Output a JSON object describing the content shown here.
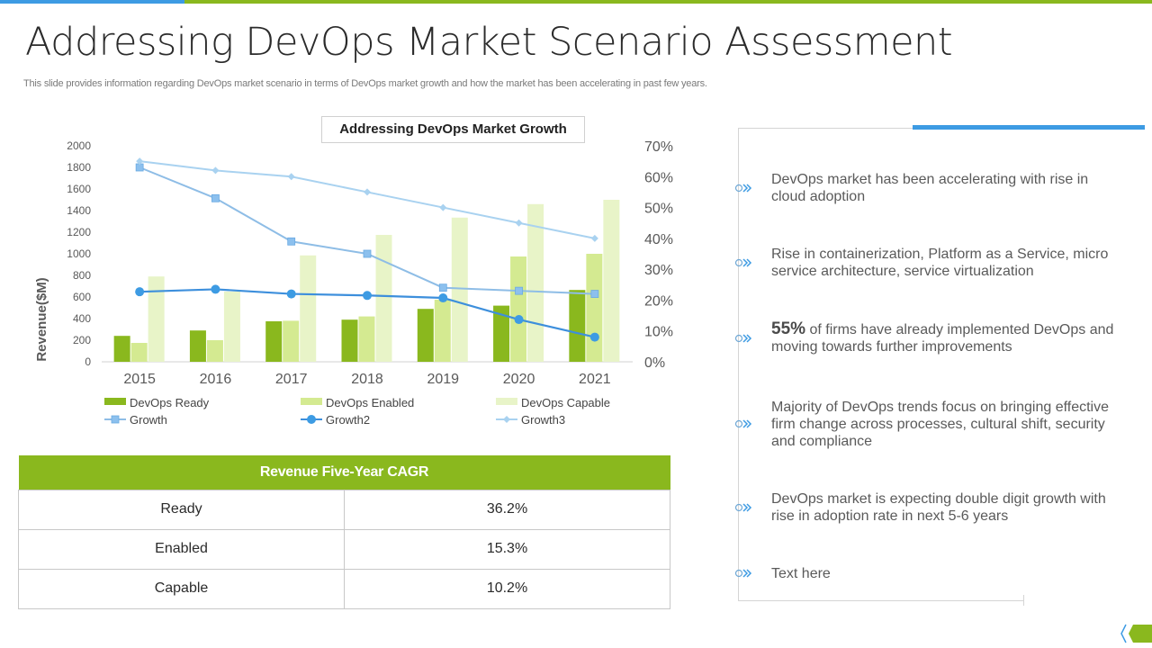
{
  "header": {
    "title": "Addressing DevOps Market Scenario Assessment",
    "subtitle": "This slide provides information regarding DevOps market scenario in terms of DevOps market growth and how the market has been accelerating in past few years."
  },
  "colors": {
    "green": "#8ab81e",
    "light_green": "#d4ea91",
    "pale_green": "#e8f4c8",
    "blue": "#3d9be3",
    "growth": "#8ebde6",
    "growth2": "#3d8fdc",
    "growth3": "#a9d2f0"
  },
  "chart_data": {
    "type": "bar",
    "title": "Addressing DevOps Market Growth",
    "xlabel": "",
    "ylabel": "Revenue($M)",
    "ylim": [
      0,
      2000
    ],
    "y_ticks": [
      "0",
      "200",
      "400",
      "600",
      "800",
      "1000",
      "1200",
      "1400",
      "1600",
      "1800",
      "2000"
    ],
    "y2lim": [
      0,
      70
    ],
    "y2_ticks": [
      "0%",
      "10%",
      "20%",
      "30%",
      "40%",
      "50%",
      "60%",
      "70%"
    ],
    "grid": false,
    "legend_position": "bottom",
    "categories": [
      "2015",
      "2016",
      "2017",
      "2018",
      "2019",
      "2020",
      "2021"
    ],
    "series": [
      {
        "name": "DevOps Ready",
        "kind": "bar",
        "axis": "left",
        "values": [
          240,
          290,
          375,
          390,
          490,
          520,
          665
        ]
      },
      {
        "name": "DevOps Enabled",
        "kind": "bar",
        "axis": "left",
        "values": [
          175,
          200,
          380,
          420,
          575,
          975,
          1000
        ]
      },
      {
        "name": "DevOps Capable",
        "kind": "bar",
        "axis": "left",
        "values": [
          790,
          650,
          985,
          1175,
          1335,
          1460,
          1500
        ]
      },
      {
        "name": "Growth",
        "kind": "line",
        "marker": "square",
        "axis": "right",
        "values": [
          63,
          53,
          39,
          35,
          24,
          23,
          22
        ]
      },
      {
        "name": "Growth2",
        "kind": "line",
        "marker": "circle",
        "axis": "right",
        "values": [
          22.7,
          23.5,
          22,
          21.5,
          20.7,
          13.7,
          8
        ]
      },
      {
        "name": "Growth3",
        "kind": "line",
        "marker": "diamond",
        "axis": "right",
        "values": [
          65,
          62,
          60,
          55,
          50,
          45,
          40
        ]
      }
    ]
  },
  "cagr_table": {
    "header": "Revenue Five-Year CAGR",
    "rows": [
      {
        "label": "Ready",
        "value": "36.2%"
      },
      {
        "label": "Enabled",
        "value": "15.3%"
      },
      {
        "label": "Capable",
        "value": "10.2%"
      }
    ]
  },
  "bullets": [
    {
      "icon": "circle-double-chevron-icon",
      "highlight": "",
      "text": "DevOps market has been accelerating with rise in cloud adoption"
    },
    {
      "icon": "circle-double-chevron-icon",
      "highlight": "",
      "text": "Rise in containerization,  Platform as a Service, micro service architecture,  service virtualization"
    },
    {
      "icon": "circle-double-chevron-icon",
      "highlight": "55%",
      "text": " of firms have already implemented DevOps and moving towards further  improvements"
    },
    {
      "icon": "circle-double-chevron-icon",
      "highlight": "",
      "text": "Majority of DevOps trends focus on bringing effective firm change across processes, cultural  shift, security and compliance"
    },
    {
      "icon": "circle-double-chevron-icon",
      "highlight": "",
      "text": "DevOps market is expecting double digit growth with rise in adoption rate in next  5-6 years"
    },
    {
      "icon": "circle-double-chevron-icon",
      "highlight": "",
      "text": "Text  here"
    }
  ]
}
